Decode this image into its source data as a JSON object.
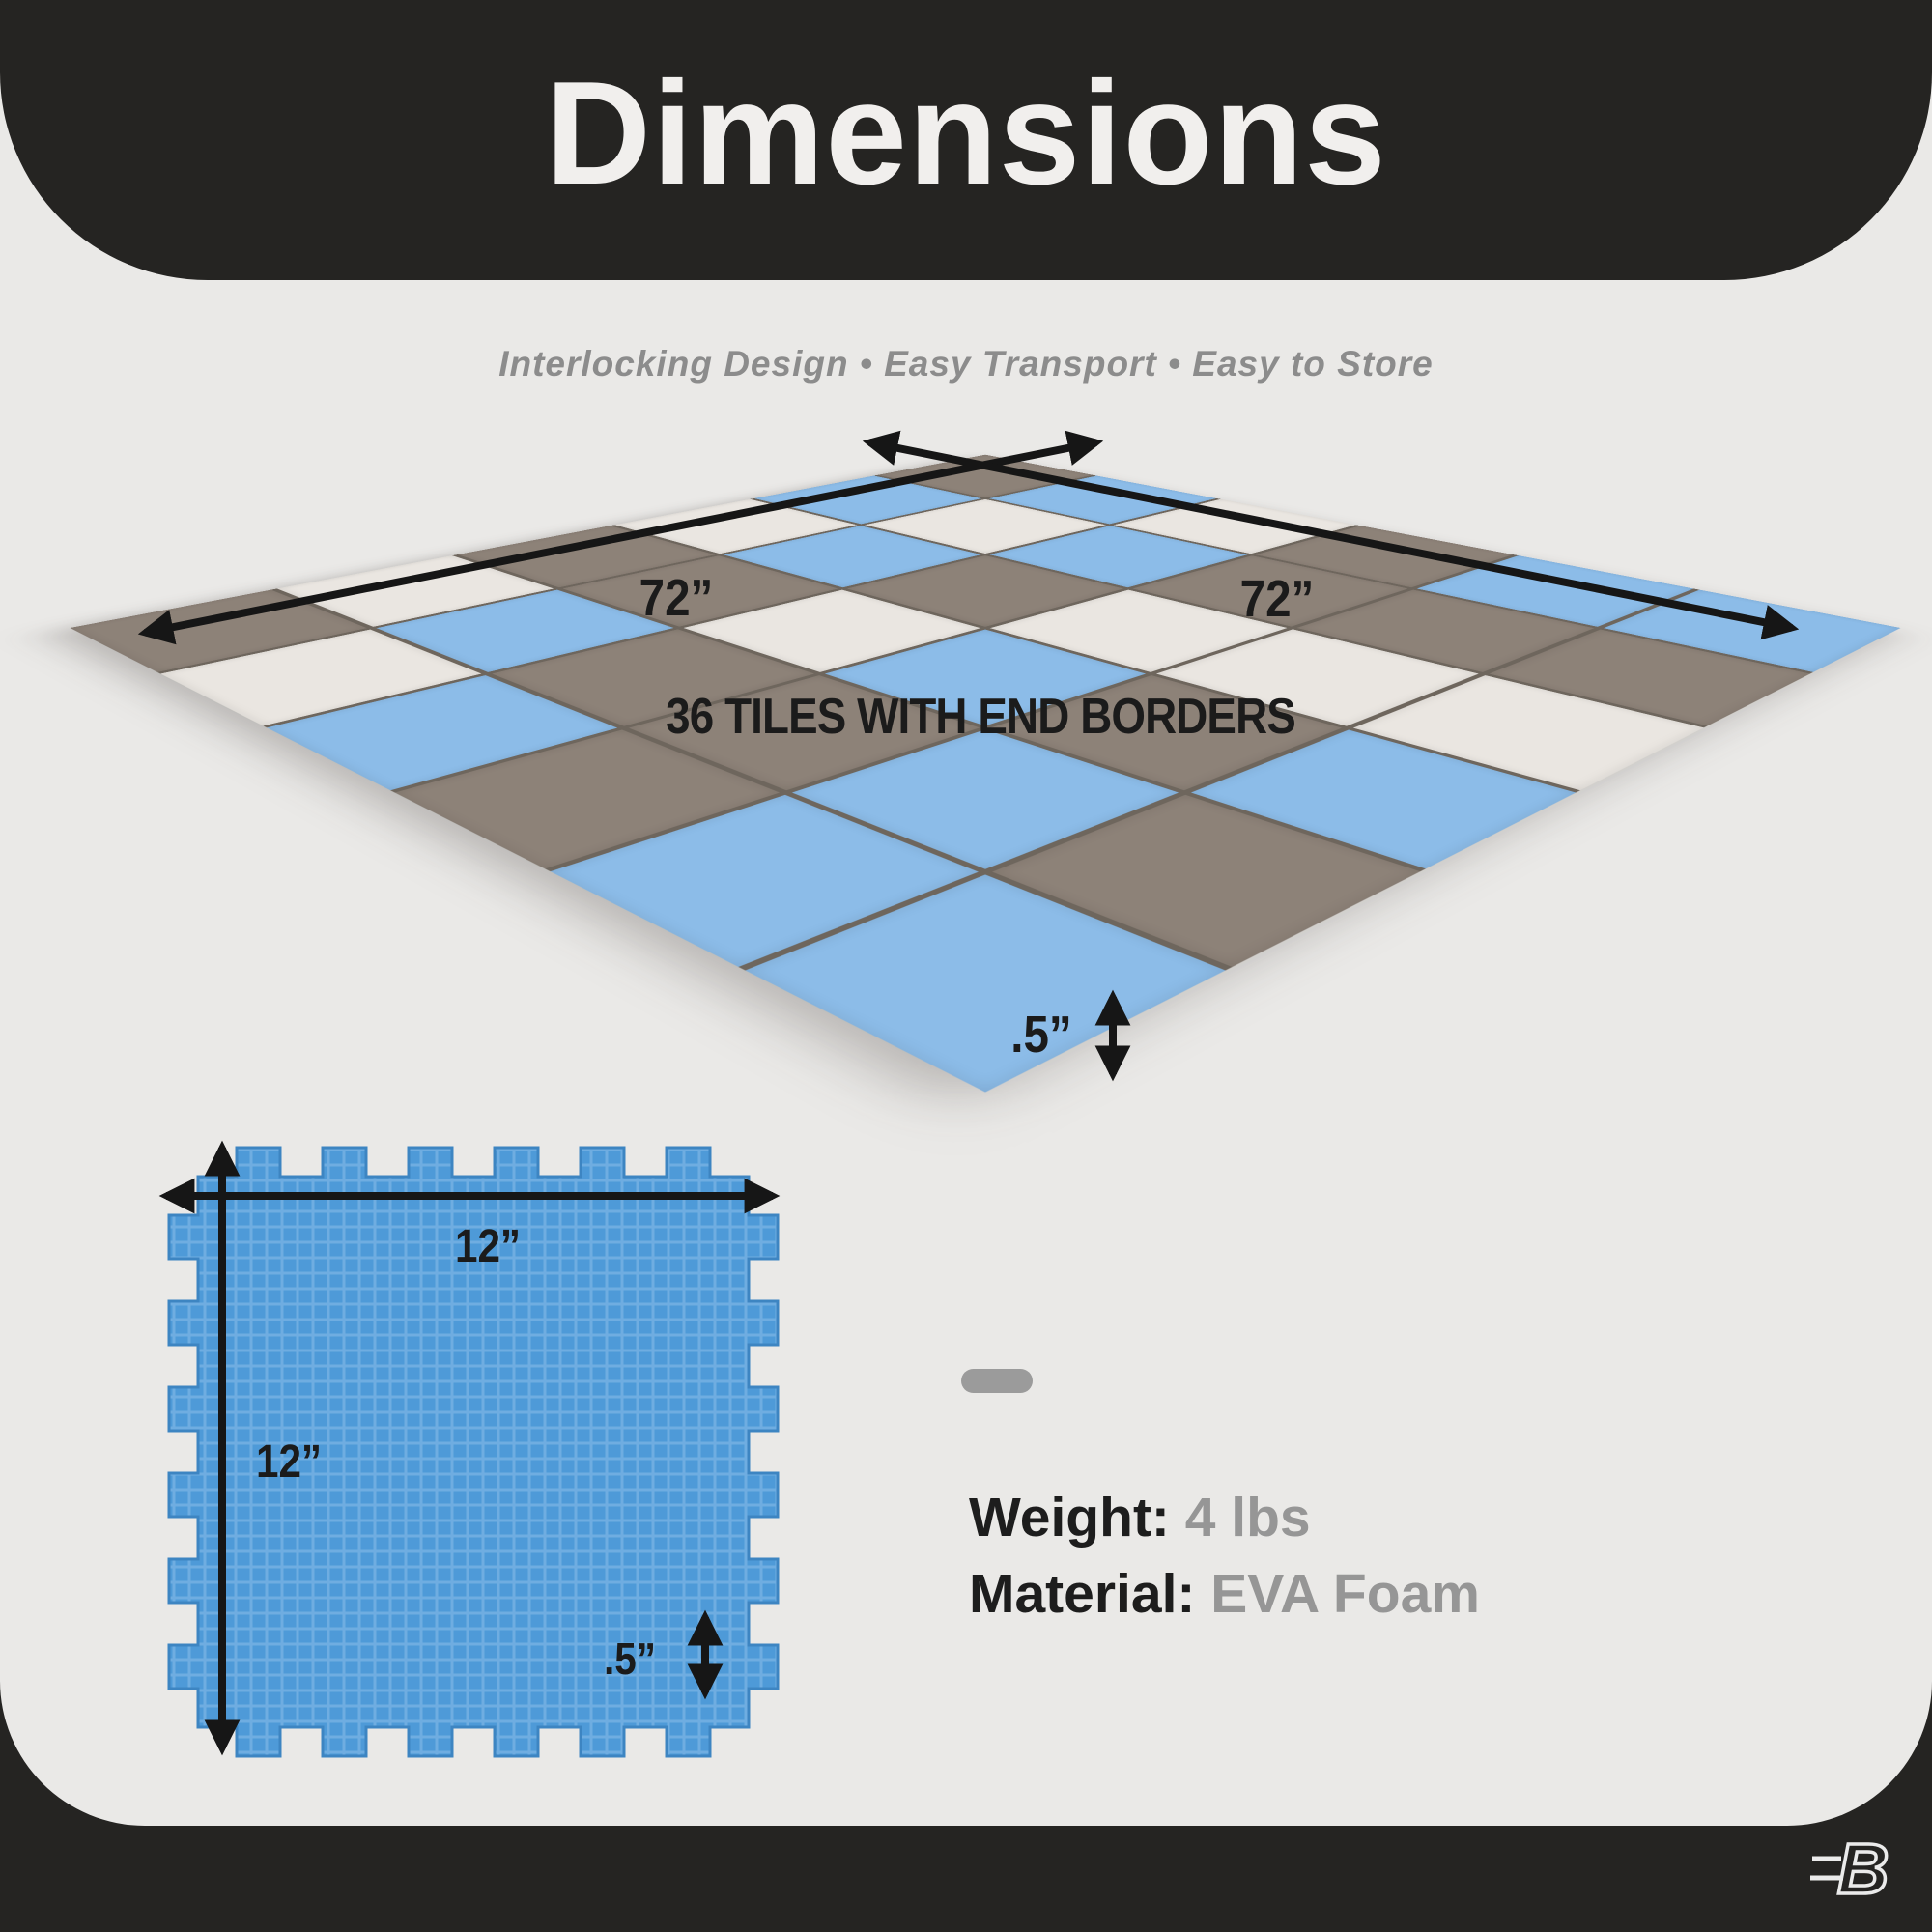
{
  "header": {
    "title": "Dimensions"
  },
  "subtitle": {
    "text": "Interlocking Design • Easy Transport • Easy to Store"
  },
  "mat": {
    "width_label": "72”",
    "depth_label": "72”",
    "caption": "36 TILES WITH END BORDERS",
    "thickness_label": ".5”",
    "tile_colors": {
      "G": "#8d8278",
      "B": "#8cbce8",
      "W": "#eae6e1"
    },
    "grid": [
      [
        "G",
        "B",
        "W",
        "G",
        "B",
        "B"
      ],
      [
        "B",
        "W",
        "B",
        "G",
        "G",
        "G"
      ],
      [
        "W",
        "B",
        "G",
        "W",
        "W",
        "W"
      ],
      [
        "G",
        "G",
        "W",
        "B",
        "G",
        "B"
      ],
      [
        "W",
        "B",
        "G",
        "G",
        "B",
        "G"
      ],
      [
        "G",
        "W",
        "B",
        "G",
        "B",
        "B"
      ]
    ]
  },
  "tile_diagram": {
    "width_label": "12”",
    "height_label": "12”",
    "thickness_label": ".5”",
    "color": "#4e9ad8",
    "texture_color": "#6fade1",
    "edge_color": "#3d85c2"
  },
  "specs": {
    "weight_label": "Weight:",
    "weight_value": " 4 lbs",
    "material_label": "Material:",
    "material_value": " EVA Foam"
  },
  "footer": {
    "logo_letter": "B"
  },
  "theme": {
    "dark": "#252422",
    "light": "#eae9e7",
    "text_dark": "#1b1b1b",
    "text_gray": "#969696",
    "arrow": "#161616",
    "accent_blue": "#8cbce8",
    "accent_gray": "#8d8278",
    "accent_white": "#eae6e1"
  }
}
